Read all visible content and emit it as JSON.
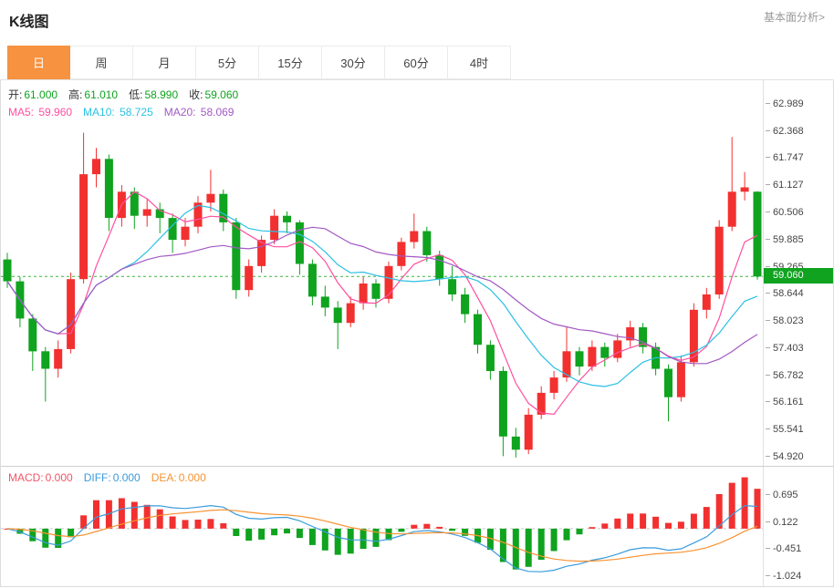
{
  "header": {
    "title": "K线图",
    "link": "基本面分析>"
  },
  "tabs": [
    {
      "name": "tab-day",
      "label": "日",
      "active": true
    },
    {
      "name": "tab-week",
      "label": "周",
      "active": false
    },
    {
      "name": "tab-month",
      "label": "月",
      "active": false
    },
    {
      "name": "tab-5min",
      "label": "5分",
      "active": false
    },
    {
      "name": "tab-15min",
      "label": "15分",
      "active": false
    },
    {
      "name": "tab-30min",
      "label": "30分",
      "active": false
    },
    {
      "name": "tab-60min",
      "label": "60分",
      "active": false
    },
    {
      "name": "tab-4hour",
      "label": "4时",
      "active": false
    }
  ],
  "info": {
    "ohlc": [
      {
        "name": "ohlc-open",
        "label": "开",
        "value": "61.000",
        "color": "#0fa31f"
      },
      {
        "name": "ohlc-high",
        "label": "高",
        "value": "61.010",
        "color": "#0fa31f"
      },
      {
        "name": "ohlc-low",
        "label": "低",
        "value": "58.990",
        "color": "#0fa31f"
      },
      {
        "name": "ohlc-close",
        "label": "收",
        "value": "59.060",
        "color": "#0fa31f"
      }
    ],
    "ma": [
      {
        "name": "ma5",
        "label": "MA5",
        "value": "59.960",
        "color": "#ff4fa0"
      },
      {
        "name": "ma10",
        "label": "MA10",
        "value": "58.725",
        "color": "#2bc0e4"
      },
      {
        "name": "ma20",
        "label": "MA20",
        "value": "58.069",
        "color": "#a259c4"
      }
    ]
  },
  "macd_info": [
    {
      "name": "macd",
      "label": "MACD",
      "value": "0.000",
      "color": "#f05566"
    },
    {
      "name": "diff",
      "label": "DIFF",
      "value": "0.000",
      "color": "#3a9bdc"
    },
    {
      "name": "dea",
      "label": "DEA",
      "value": "0.000",
      "color": "#f79231"
    }
  ],
  "chart_data": {
    "type": "candlestick",
    "title": "K线图",
    "period": "日",
    "current_price": "59.060",
    "ohlc_last": {
      "open": 61.0,
      "high": 61.01,
      "low": 58.99,
      "close": 59.06
    },
    "ma_values": {
      "MA5": 59.96,
      "MA10": 58.725,
      "MA20": 58.069
    },
    "indicator": {
      "name": "MACD",
      "MACD": 0.0,
      "DIFF": 0.0,
      "DEA": 0.0
    },
    "y_axis": {
      "main": [
        "62.989",
        "62.368",
        "61.747",
        "61.127",
        "60.506",
        "59.885",
        "59.265",
        "58.644",
        "58.023",
        "57.403",
        "56.782",
        "56.161",
        "55.541",
        "54.920"
      ],
      "macd": [
        "0.695",
        "0.122",
        "-0.451",
        "-1.024"
      ]
    },
    "scales": {
      "main": [
        54.73,
        63.55
      ],
      "macd": [
        -1.215,
        1.306
      ]
    },
    "candles": [
      [
        59.45,
        59.6,
        58.8,
        58.95
      ],
      [
        58.95,
        59.05,
        57.9,
        58.1
      ],
      [
        58.1,
        58.2,
        56.9,
        57.35
      ],
      [
        57.35,
        57.45,
        56.2,
        56.95
      ],
      [
        56.95,
        57.6,
        56.75,
        57.4
      ],
      [
        57.4,
        59.15,
        57.3,
        59.0
      ],
      [
        59.0,
        62.35,
        58.9,
        61.4
      ],
      [
        61.4,
        62.0,
        61.1,
        61.75
      ],
      [
        61.75,
        61.85,
        60.1,
        60.4
      ],
      [
        60.4,
        61.15,
        60.2,
        61.0
      ],
      [
        61.0,
        61.1,
        60.15,
        60.45
      ],
      [
        60.45,
        60.85,
        60.2,
        60.6
      ],
      [
        60.6,
        60.75,
        60.05,
        60.4
      ],
      [
        60.4,
        60.5,
        59.6,
        59.9
      ],
      [
        59.9,
        60.4,
        59.75,
        60.2
      ],
      [
        60.2,
        60.9,
        60.05,
        60.75
      ],
      [
        60.75,
        61.5,
        60.55,
        60.95
      ],
      [
        60.95,
        61.05,
        60.1,
        60.3
      ],
      [
        60.3,
        60.4,
        58.55,
        58.75
      ],
      [
        58.75,
        59.45,
        58.6,
        59.3
      ],
      [
        59.3,
        60.0,
        59.15,
        59.9
      ],
      [
        59.9,
        60.6,
        59.8,
        60.45
      ],
      [
        60.45,
        60.55,
        60.05,
        60.3
      ],
      [
        60.3,
        60.35,
        59.1,
        59.35
      ],
      [
        59.35,
        59.45,
        58.4,
        58.6
      ],
      [
        58.6,
        58.85,
        58.15,
        58.35
      ],
      [
        58.35,
        58.5,
        57.4,
        58.0
      ],
      [
        58.0,
        58.6,
        57.9,
        58.45
      ],
      [
        58.45,
        59.05,
        58.3,
        58.9
      ],
      [
        58.9,
        59.0,
        58.35,
        58.55
      ],
      [
        58.55,
        59.4,
        58.45,
        59.3
      ],
      [
        59.3,
        59.95,
        59.2,
        59.85
      ],
      [
        59.85,
        60.5,
        59.7,
        60.1
      ],
      [
        60.1,
        60.2,
        59.4,
        59.55
      ],
      [
        59.55,
        59.65,
        58.85,
        59.0
      ],
      [
        59.0,
        59.3,
        58.5,
        58.65
      ],
      [
        58.65,
        58.8,
        58.0,
        58.2
      ],
      [
        58.2,
        58.3,
        57.3,
        57.5
      ],
      [
        57.5,
        57.6,
        56.7,
        56.9
      ],
      [
        56.9,
        57.0,
        54.95,
        55.4
      ],
      [
        55.4,
        55.6,
        54.92,
        55.1
      ],
      [
        55.1,
        56.05,
        55.0,
        55.9
      ],
      [
        55.9,
        56.55,
        55.8,
        56.4
      ],
      [
        56.4,
        56.9,
        56.25,
        56.75
      ],
      [
        56.75,
        57.9,
        56.65,
        57.35
      ],
      [
        57.35,
        57.45,
        56.8,
        57.0
      ],
      [
        57.0,
        57.6,
        56.9,
        57.45
      ],
      [
        57.45,
        57.55,
        57.0,
        57.2
      ],
      [
        57.2,
        57.75,
        57.1,
        57.6
      ],
      [
        57.6,
        58.05,
        57.45,
        57.9
      ],
      [
        57.9,
        58.0,
        57.3,
        57.45
      ],
      [
        57.45,
        57.55,
        56.8,
        56.95
      ],
      [
        56.95,
        57.05,
        55.75,
        56.3
      ],
      [
        56.3,
        57.25,
        56.2,
        57.1
      ],
      [
        57.1,
        58.45,
        57.0,
        58.3
      ],
      [
        58.3,
        58.8,
        58.1,
        58.65
      ],
      [
        58.65,
        60.35,
        58.55,
        60.2
      ],
      [
        60.2,
        62.25,
        60.1,
        61.0
      ],
      [
        61.0,
        61.45,
        60.8,
        61.1
      ],
      [
        61.0,
        61.01,
        58.99,
        59.06
      ]
    ],
    "colors": {
      "up": "#f23030",
      "down": "#0fa31f",
      "accent": "#f79240",
      "tag": "#0fa31f",
      "priceline": "#3cb53c",
      "ma5": "#ff4fa0",
      "ma10": "#2bc0e4",
      "ma20": "#a259c4",
      "diff": "#3a9bdc",
      "dea": "#f79231"
    }
  }
}
